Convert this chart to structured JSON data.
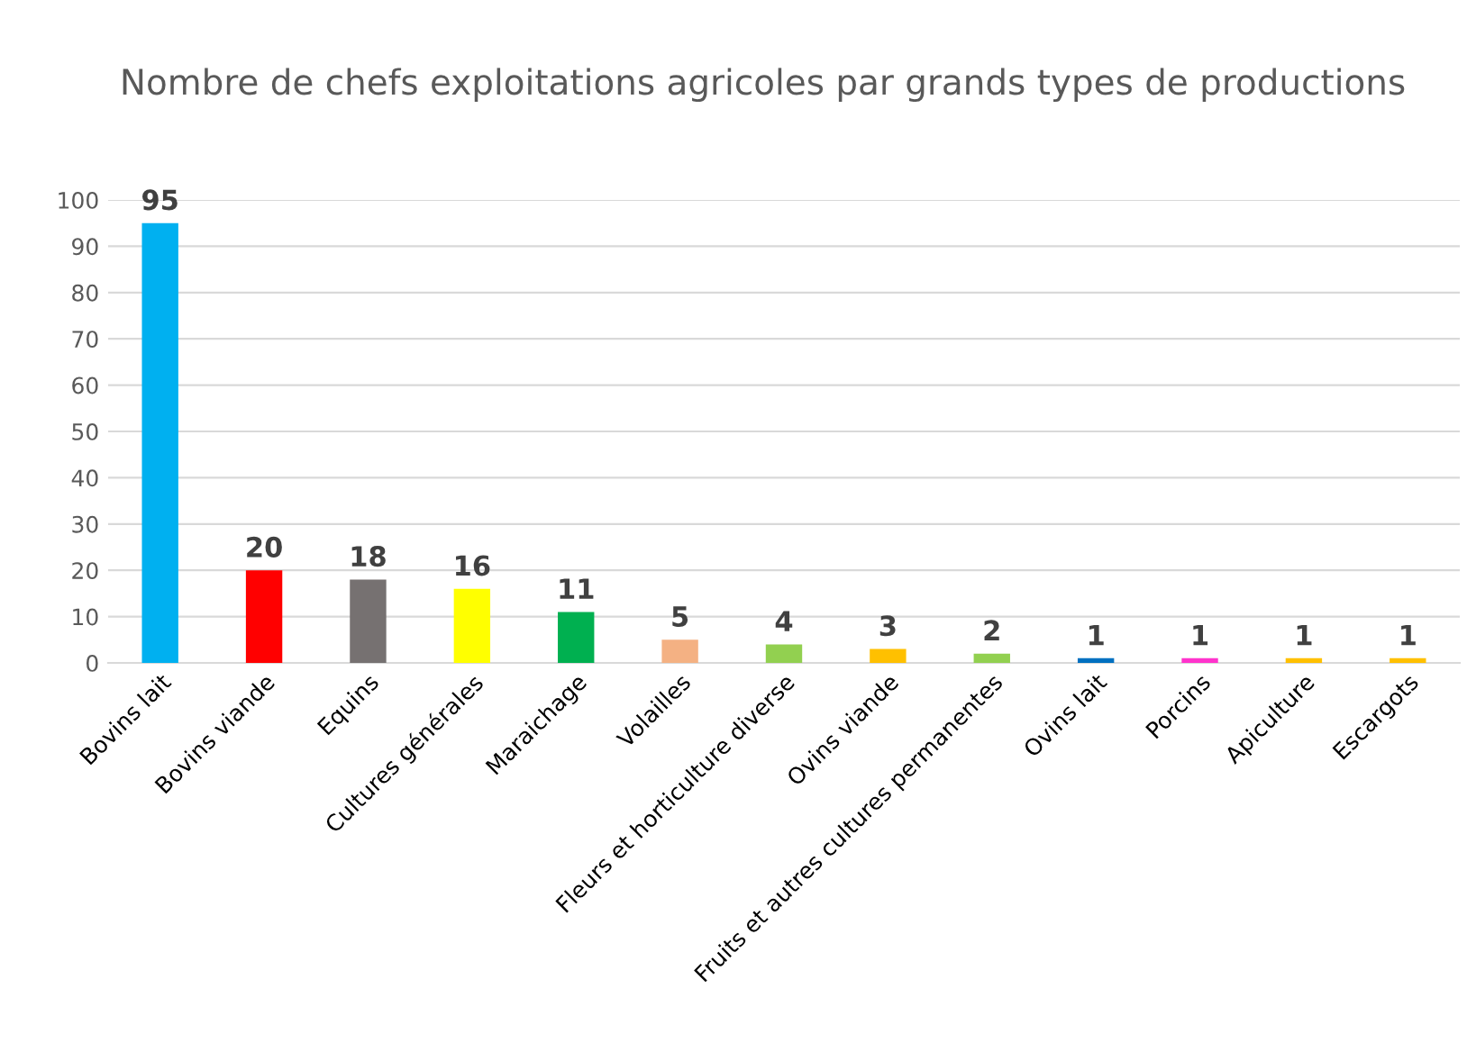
{
  "chart_data": {
    "type": "bar",
    "title": "Nombre de chefs exploitations agricoles par grands types de productions",
    "categories": [
      "Bovins lait",
      "Bovins viande",
      "Equins",
      "Cultures générales",
      "Maraichage",
      "Volailles",
      "Fleurs et horticulture diverse",
      "Ovins viande",
      "Fruits et autres cultures permanentes",
      "Ovins lait",
      "Porcins",
      "Apiculture",
      "Escargots"
    ],
    "values": [
      95,
      20,
      18,
      16,
      11,
      5,
      4,
      3,
      2,
      1,
      1,
      1,
      1
    ],
    "colors": [
      "#00b0f0",
      "#ff0000",
      "#767171",
      "#ffff00",
      "#00b050",
      "#f4b183",
      "#92d050",
      "#ffc000",
      "#92d050",
      "#0070c0",
      "#ff33cc",
      "#ffc000",
      "#ffc000"
    ],
    "ylim": [
      0,
      100
    ],
    "yticks": [
      0,
      10,
      20,
      30,
      40,
      50,
      60,
      70,
      80,
      90,
      100
    ],
    "grid": "y",
    "data_labels": true
  }
}
